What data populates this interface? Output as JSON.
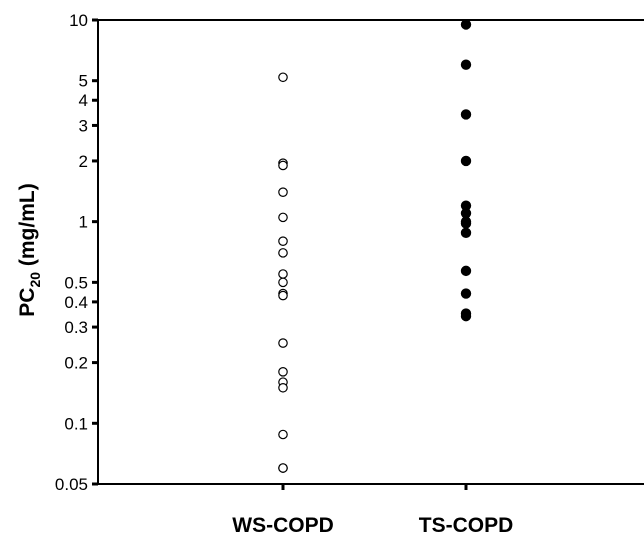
{
  "chart_data": {
    "type": "scatter",
    "yscale": "log",
    "ylim": [
      0.05,
      10
    ],
    "ylabel": "PC20 (mg/mL)",
    "ylabel_main": "PC",
    "ylabel_sub": "20",
    "ylabel_unit": " (mg/mL)",
    "categories": [
      "WS-COPD",
      "TS-COPD"
    ],
    "yticks": [
      0.05,
      0.1,
      0.2,
      0.3,
      0.4,
      0.5,
      1,
      2,
      3,
      4,
      5,
      10
    ],
    "ytick_labels": [
      "0.05",
      "0.1",
      "0.2",
      "0.3",
      "0.4",
      "0.5",
      "1",
      "2",
      "3",
      "4",
      "5",
      "10"
    ],
    "grid": false,
    "series": [
      {
        "category": "WS-COPD",
        "marker": "open-circle",
        "values": [
          5.2,
          1.95,
          1.9,
          1.4,
          1.05,
          0.8,
          0.7,
          0.55,
          0.5,
          0.44,
          0.43,
          0.25,
          0.18,
          0.16,
          0.15,
          0.088,
          0.06,
          0.06
        ]
      },
      {
        "category": "TS-COPD",
        "marker": "filled-circle",
        "values": [
          9.5,
          6.0,
          3.4,
          2.0,
          1.2,
          1.1,
          1.0,
          0.98,
          0.88,
          0.57,
          0.44,
          0.35,
          0.34
        ]
      }
    ]
  }
}
